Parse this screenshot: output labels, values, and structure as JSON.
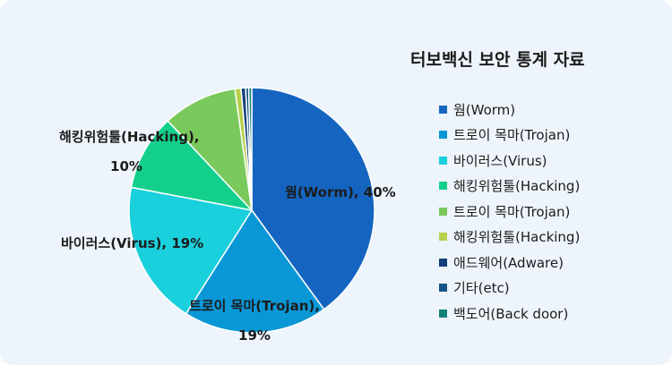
{
  "chart_data": {
    "type": "pie",
    "title": "터보백신 보안 통계 자료",
    "legend_position": "right",
    "slices": [
      {
        "label": "웜(Worm)",
        "value": 40,
        "color": "#1565c0"
      },
      {
        "label": "트로이 목마(Trojan)",
        "value": 19,
        "color": "#0a97d6"
      },
      {
        "label": "바이러스(Virus)",
        "value": 19,
        "color": "#19d0dc"
      },
      {
        "label": "해킹위험툴(Hacking)",
        "value": 10,
        "color": "#13cf8c"
      },
      {
        "label": "트로이 목마(Trojan)",
        "value": 9.8,
        "color": "#7ac95c"
      },
      {
        "label": "해킹위험툴(Hacking)",
        "value": 0.8,
        "color": "#b7cf4b"
      },
      {
        "label": "애드웨어(Adware)",
        "value": 0.6,
        "color": "#123f7c"
      },
      {
        "label": "기타(etc)",
        "value": 0.4,
        "color": "#155583"
      },
      {
        "label": "백도어(Back door)",
        "value": 0.4,
        "color": "#12827a"
      }
    ],
    "data_labels": [
      {
        "line1": "웜(Worm), 40%",
        "line2": ""
      },
      {
        "line1": "트로이 목마(Trojan),",
        "line2": "19%"
      },
      {
        "line1": "바이러스(Virus), 19%",
        "line2": ""
      },
      {
        "line1": "해킹위험툴(Hacking),",
        "line2": "10%"
      }
    ]
  }
}
